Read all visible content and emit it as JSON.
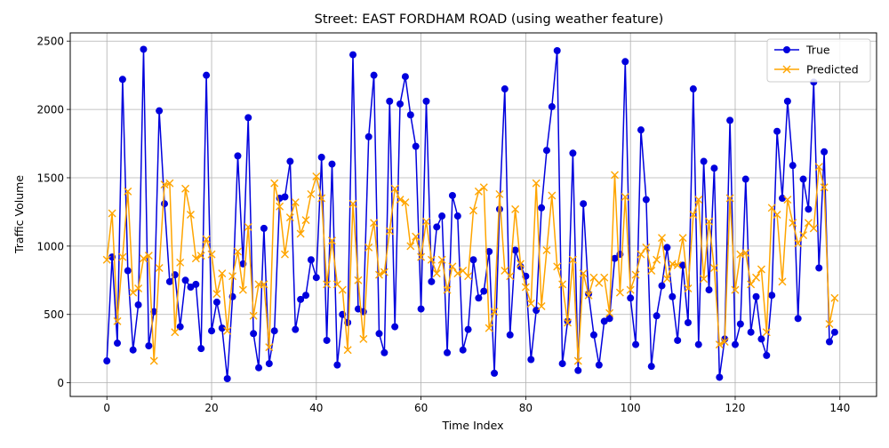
{
  "chart_data": {
    "type": "line",
    "title": "Street: EAST FORDHAM ROAD (using weather feature)",
    "xlabel": "Time Index",
    "ylabel": "Traffic Volume",
    "xlim": [
      -7,
      147
    ],
    "ylim": [
      -100,
      2560
    ],
    "xticks": [
      0,
      20,
      40,
      60,
      80,
      100,
      120,
      140
    ],
    "yticks": [
      0,
      500,
      1000,
      1500,
      2000,
      2500
    ],
    "grid": true,
    "legend": "top-right",
    "x": [
      0,
      1,
      2,
      3,
      4,
      5,
      6,
      7,
      8,
      9,
      10,
      11,
      12,
      13,
      14,
      15,
      16,
      17,
      18,
      19,
      20,
      21,
      22,
      23,
      24,
      25,
      26,
      27,
      28,
      29,
      30,
      31,
      32,
      33,
      34,
      35,
      36,
      37,
      38,
      39,
      40,
      41,
      42,
      43,
      44,
      45,
      46,
      47,
      48,
      49,
      50,
      51,
      52,
      53,
      54,
      55,
      56,
      57,
      58,
      59,
      60,
      61,
      62,
      63,
      64,
      65,
      66,
      67,
      68,
      69,
      70,
      71,
      72,
      73,
      74,
      75,
      76,
      77,
      78,
      79,
      80,
      81,
      82,
      83,
      84,
      85,
      86,
      87,
      88,
      89,
      90,
      91,
      92,
      93,
      94,
      95,
      96,
      97,
      98,
      99,
      100,
      101,
      102,
      103,
      104,
      105,
      106,
      107,
      108,
      109,
      110,
      111,
      112,
      113,
      114,
      115,
      116,
      117,
      118,
      119,
      120,
      121,
      122,
      123,
      124,
      125,
      126,
      127,
      128,
      129,
      130,
      131,
      132,
      133,
      134,
      135,
      136,
      137,
      138,
      139
    ],
    "series": [
      {
        "name": "True",
        "color": "#0000dd",
        "marker": "circle",
        "values": [
          160,
          920,
          290,
          2220,
          820,
          240,
          570,
          2440,
          270,
          520,
          1990,
          1310,
          740,
          790,
          410,
          750,
          700,
          720,
          250,
          2250,
          380,
          590,
          400,
          30,
          630,
          1660,
          870,
          1940,
          360,
          110,
          1130,
          140,
          380,
          1350,
          1360,
          1620,
          390,
          610,
          640,
          900,
          770,
          1650,
          310,
          1600,
          130,
          500,
          440,
          2400,
          540,
          520,
          1800,
          2250,
          360,
          220,
          2060,
          410,
          2040,
          2240,
          1960,
          1730,
          540,
          2060,
          740,
          1140,
          1220,
          220,
          1370,
          1220,
          240,
          390,
          900,
          620,
          670,
          960,
          70,
          1270,
          2150,
          350,
          970,
          850,
          780,
          170,
          530,
          1280,
          1700,
          2020,
          2430,
          140,
          450,
          1680,
          90,
          1310,
          650,
          350,
          130,
          450,
          470,
          910,
          940,
          2350,
          620,
          280,
          1850,
          1340,
          120,
          490,
          710,
          990,
          630,
          310,
          860,
          440,
          2150,
          280,
          1620,
          680,
          1570,
          40,
          320,
          1920,
          280,
          430,
          1490,
          370,
          630,
          320,
          200,
          640,
          1840,
          1350,
          2060,
          1590,
          470,
          1490,
          1270,
          2200,
          840,
          1690,
          300,
          370
        ]
      },
      {
        "name": "Predicted",
        "color": "#ffa500",
        "marker": "x",
        "values": [
          900,
          1240,
          450,
          920,
          1400,
          660,
          690,
          910,
          930,
          160,
          840,
          1450,
          1460,
          370,
          880,
          1420,
          1230,
          910,
          930,
          1050,
          940,
          650,
          800,
          380,
          780,
          960,
          680,
          1140,
          490,
          720,
          720,
          260,
          1460,
          1290,
          940,
          1210,
          1320,
          1090,
          1190,
          1380,
          1510,
          1350,
          720,
          1040,
          720,
          680,
          240,
          1310,
          750,
          320,
          990,
          1170,
          790,
          810,
          1110,
          1420,
          1340,
          1320,
          1000,
          1070,
          920,
          1180,
          900,
          800,
          900,
          680,
          850,
          800,
          820,
          780,
          1260,
          1400,
          1430,
          400,
          520,
          1380,
          820,
          780,
          1270,
          870,
          700,
          580,
          1460,
          560,
          970,
          1370,
          850,
          720,
          440,
          900,
          160,
          800,
          640,
          770,
          730,
          770,
          510,
          1520,
          660,
          1360,
          680,
          790,
          940,
          990,
          820,
          900,
          1060,
          760,
          870,
          860,
          1060,
          690,
          1230,
          1340,
          760,
          1180,
          840,
          280,
          300,
          1350,
          680,
          940,
          950,
          720,
          770,
          830,
          370,
          1280,
          1230,
          740,
          1340,
          1170,
          1020,
          1080,
          1170,
          1130,
          1580,
          1430,
          430,
          620
        ]
      }
    ]
  }
}
